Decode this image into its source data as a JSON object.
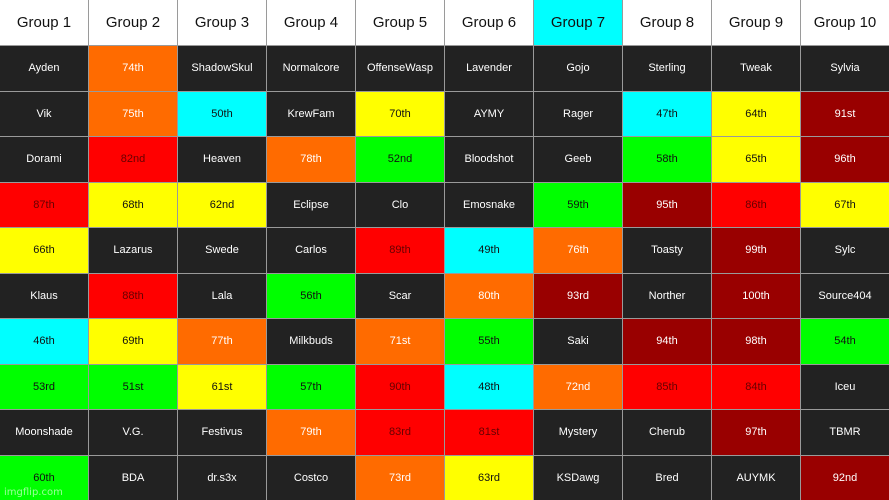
{
  "colors": {
    "dark": "#222222",
    "orange": "#ff6b00",
    "cyan": "#00ffff",
    "yellow": "#ffff00",
    "maroon": "#990000",
    "red": "#ff0000",
    "green": "#00ff00",
    "white": "#ffffff"
  },
  "headers": [
    {
      "text": "Group 1",
      "color": "white"
    },
    {
      "text": "Group 2",
      "color": "white"
    },
    {
      "text": "Group 3",
      "color": "white"
    },
    {
      "text": "Group 4",
      "color": "white"
    },
    {
      "text": "Group 5",
      "color": "white"
    },
    {
      "text": "Group 6",
      "color": "white"
    },
    {
      "text": "Group 7",
      "color": "cyan"
    },
    {
      "text": "Group 8",
      "color": "white"
    },
    {
      "text": "Group 9",
      "color": "white"
    },
    {
      "text": "Group 10",
      "color": "white"
    }
  ],
  "rows": [
    [
      {
        "text": "Ayden",
        "color": "dark"
      },
      {
        "text": "74th",
        "color": "orange"
      },
      {
        "text": "ShadowSkul",
        "color": "dark"
      },
      {
        "text": "Normalcore",
        "color": "dark"
      },
      {
        "text": "OffenseWasp",
        "color": "dark"
      },
      {
        "text": "Lavender",
        "color": "dark"
      },
      {
        "text": "Gojo",
        "color": "dark"
      },
      {
        "text": "Sterling",
        "color": "dark"
      },
      {
        "text": "Tweak",
        "color": "dark"
      },
      {
        "text": "Sylvia",
        "color": "dark"
      }
    ],
    [
      {
        "text": "Vik",
        "color": "dark"
      },
      {
        "text": "75th",
        "color": "orange"
      },
      {
        "text": "50th",
        "color": "cyan"
      },
      {
        "text": "KrewFam",
        "color": "dark"
      },
      {
        "text": "70th",
        "color": "yellow"
      },
      {
        "text": "AYMY",
        "color": "dark"
      },
      {
        "text": "Rager",
        "color": "dark"
      },
      {
        "text": "47th",
        "color": "cyan"
      },
      {
        "text": "64th",
        "color": "yellow"
      },
      {
        "text": "91st",
        "color": "maroon"
      }
    ],
    [
      {
        "text": "Dorami",
        "color": "dark"
      },
      {
        "text": "82nd",
        "color": "red"
      },
      {
        "text": "Heaven",
        "color": "dark"
      },
      {
        "text": "78th",
        "color": "orange"
      },
      {
        "text": "52nd",
        "color": "green"
      },
      {
        "text": "Bloodshot",
        "color": "dark"
      },
      {
        "text": "Geeb",
        "color": "dark"
      },
      {
        "text": "58th",
        "color": "green"
      },
      {
        "text": "65th",
        "color": "yellow"
      },
      {
        "text": "96th",
        "color": "maroon"
      }
    ],
    [
      {
        "text": "87th",
        "color": "red"
      },
      {
        "text": "68th",
        "color": "yellow"
      },
      {
        "text": "62nd",
        "color": "yellow"
      },
      {
        "text": "Eclipse",
        "color": "dark"
      },
      {
        "text": "Clo",
        "color": "dark"
      },
      {
        "text": "Emosnake",
        "color": "dark"
      },
      {
        "text": "59th",
        "color": "green"
      },
      {
        "text": "95th",
        "color": "maroon"
      },
      {
        "text": "86th",
        "color": "red"
      },
      {
        "text": "67th",
        "color": "yellow"
      }
    ],
    [
      {
        "text": "66th",
        "color": "yellow"
      },
      {
        "text": "Lazarus",
        "color": "dark"
      },
      {
        "text": "Swede",
        "color": "dark"
      },
      {
        "text": "Carlos",
        "color": "dark"
      },
      {
        "text": "89th",
        "color": "red"
      },
      {
        "text": "49th",
        "color": "cyan"
      },
      {
        "text": "76th",
        "color": "orange"
      },
      {
        "text": "Toasty",
        "color": "dark"
      },
      {
        "text": "99th",
        "color": "maroon"
      },
      {
        "text": "Sylc",
        "color": "dark"
      }
    ],
    [
      {
        "text": "Klaus",
        "color": "dark"
      },
      {
        "text": "88th",
        "color": "red"
      },
      {
        "text": "Lala",
        "color": "dark"
      },
      {
        "text": "56th",
        "color": "green"
      },
      {
        "text": "Scar",
        "color": "dark"
      },
      {
        "text": "80th",
        "color": "orange"
      },
      {
        "text": "93rd",
        "color": "maroon"
      },
      {
        "text": "Norther",
        "color": "dark"
      },
      {
        "text": "100th",
        "color": "maroon"
      },
      {
        "text": "Source404",
        "color": "dark"
      }
    ],
    [
      {
        "text": "46th",
        "color": "cyan"
      },
      {
        "text": "69th",
        "color": "yellow"
      },
      {
        "text": "77th",
        "color": "orange"
      },
      {
        "text": "Milkbuds",
        "color": "dark"
      },
      {
        "text": "71st",
        "color": "orange"
      },
      {
        "text": "55th",
        "color": "green"
      },
      {
        "text": "Saki",
        "color": "dark"
      },
      {
        "text": "94th",
        "color": "maroon"
      },
      {
        "text": "98th",
        "color": "maroon"
      },
      {
        "text": "54th",
        "color": "green"
      }
    ],
    [
      {
        "text": "53rd",
        "color": "green"
      },
      {
        "text": "51st",
        "color": "green"
      },
      {
        "text": "61st",
        "color": "yellow"
      },
      {
        "text": "57th",
        "color": "green"
      },
      {
        "text": "90th",
        "color": "red"
      },
      {
        "text": "48th",
        "color": "cyan"
      },
      {
        "text": "72nd",
        "color": "orange"
      },
      {
        "text": "85th",
        "color": "red"
      },
      {
        "text": "84th",
        "color": "red"
      },
      {
        "text": "Iceu",
        "color": "dark"
      }
    ],
    [
      {
        "text": "Moonshade",
        "color": "dark"
      },
      {
        "text": "V.G.",
        "color": "dark"
      },
      {
        "text": "Festivus",
        "color": "dark"
      },
      {
        "text": "79th",
        "color": "orange"
      },
      {
        "text": "83rd",
        "color": "red"
      },
      {
        "text": "81st",
        "color": "red"
      },
      {
        "text": "Mystery",
        "color": "dark"
      },
      {
        "text": "Cherub",
        "color": "dark"
      },
      {
        "text": "97th",
        "color": "maroon"
      },
      {
        "text": "TBMR",
        "color": "dark"
      }
    ],
    [
      {
        "text": "60th",
        "color": "green"
      },
      {
        "text": "BDA",
        "color": "dark"
      },
      {
        "text": "dr.s3x",
        "color": "dark"
      },
      {
        "text": "Costco",
        "color": "dark"
      },
      {
        "text": "73rd",
        "color": "orange"
      },
      {
        "text": "63rd",
        "color": "yellow"
      },
      {
        "text": "KSDawg",
        "color": "dark"
      },
      {
        "text": "Bred",
        "color": "dark"
      },
      {
        "text": "AUYMK",
        "color": "dark"
      },
      {
        "text": "92nd",
        "color": "maroon"
      }
    ]
  ],
  "watermark": "imgflip.com"
}
